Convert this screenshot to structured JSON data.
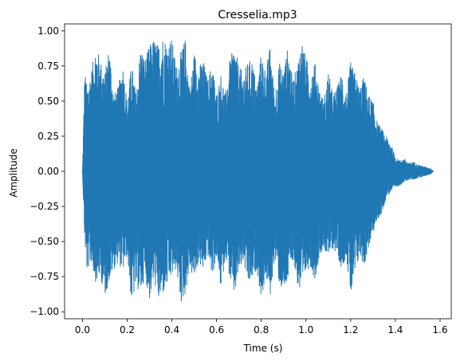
{
  "chart_data": {
    "type": "line",
    "title": "Cresselia.mp3",
    "xlabel": "Time (s)",
    "ylabel": "Amplitude",
    "xlim": [
      -0.08,
      1.65
    ],
    "ylim": [
      -1.05,
      1.05
    ],
    "x_ticks": [
      0.0,
      0.2,
      0.4,
      0.6,
      0.8,
      1.0,
      1.2,
      1.4,
      1.6
    ],
    "x_tick_labels": [
      "0.0",
      "0.2",
      "0.4",
      "0.6",
      "0.8",
      "1.0",
      "1.2",
      "1.4",
      "1.6"
    ],
    "y_ticks": [
      -1.0,
      -0.75,
      -0.5,
      -0.25,
      0.0,
      0.25,
      0.5,
      0.75,
      1.0
    ],
    "y_tick_labels": [
      "−1.00",
      "−0.75",
      "−0.50",
      "−0.25",
      "0.00",
      "0.25",
      "0.50",
      "0.75",
      "1.00"
    ],
    "grid": false,
    "series_color": "#1f77b4",
    "duration": 1.57,
    "envelope": {
      "description_units": "time in seconds, amplitude peaks",
      "t": [
        0.0,
        0.01,
        0.02,
        0.04,
        0.06,
        0.08,
        0.1,
        0.12,
        0.14,
        0.16,
        0.18,
        0.2,
        0.22,
        0.24,
        0.26,
        0.28,
        0.3,
        0.32,
        0.34,
        0.36,
        0.38,
        0.4,
        0.42,
        0.44,
        0.46,
        0.48,
        0.5,
        0.52,
        0.54,
        0.56,
        0.58,
        0.6,
        0.62,
        0.64,
        0.66,
        0.68,
        0.7,
        0.72,
        0.74,
        0.76,
        0.78,
        0.8,
        0.82,
        0.84,
        0.86,
        0.88,
        0.9,
        0.92,
        0.94,
        0.96,
        0.98,
        1.0,
        1.02,
        1.04,
        1.06,
        1.08,
        1.1,
        1.12,
        1.14,
        1.16,
        1.18,
        1.2,
        1.22,
        1.24,
        1.26,
        1.28,
        1.3,
        1.32,
        1.34,
        1.36,
        1.38,
        1.4,
        1.42,
        1.44,
        1.46,
        1.48,
        1.5,
        1.52,
        1.54,
        1.56,
        1.57
      ],
      "pos": [
        0.0,
        0.73,
        0.6,
        0.73,
        0.9,
        0.8,
        0.7,
        0.9,
        0.55,
        0.6,
        0.78,
        0.5,
        0.78,
        0.55,
        0.9,
        0.8,
        0.9,
        0.95,
        0.9,
        0.97,
        0.92,
        0.95,
        0.75,
        0.85,
        0.95,
        0.6,
        0.85,
        0.75,
        0.8,
        0.65,
        0.78,
        0.55,
        0.7,
        0.55,
        0.8,
        0.9,
        0.75,
        0.7,
        0.78,
        0.8,
        0.6,
        0.85,
        0.72,
        0.9,
        0.55,
        0.78,
        0.72,
        0.9,
        0.65,
        0.75,
        0.95,
        0.82,
        0.7,
        0.78,
        0.6,
        0.5,
        0.72,
        0.55,
        0.6,
        0.72,
        0.55,
        0.78,
        0.7,
        0.6,
        0.68,
        0.55,
        0.5,
        0.35,
        0.3,
        0.25,
        0.2,
        0.1,
        0.08,
        0.09,
        0.06,
        0.07,
        0.05,
        0.04,
        0.03,
        0.02,
        0.0
      ],
      "neg": [
        0.0,
        -0.5,
        -0.72,
        -0.65,
        -0.8,
        -0.75,
        -0.9,
        -0.78,
        -0.7,
        -0.65,
        -0.72,
        -0.6,
        -0.95,
        -0.82,
        -0.88,
        -0.75,
        -0.92,
        -0.78,
        -0.93,
        -0.88,
        -0.82,
        -0.75,
        -0.7,
        -0.95,
        -0.88,
        -0.7,
        -0.78,
        -0.65,
        -0.72,
        -0.6,
        -0.75,
        -0.62,
        -0.85,
        -0.6,
        -0.78,
        -0.9,
        -0.72,
        -0.65,
        -0.82,
        -0.78,
        -0.7,
        -0.92,
        -0.75,
        -0.9,
        -0.62,
        -0.8,
        -0.88,
        -0.78,
        -0.62,
        -0.8,
        -0.92,
        -0.72,
        -0.68,
        -0.78,
        -0.6,
        -0.55,
        -0.62,
        -0.55,
        -0.6,
        -0.7,
        -0.6,
        -0.9,
        -0.75,
        -0.6,
        -0.68,
        -0.55,
        -0.45,
        -0.35,
        -0.3,
        -0.18,
        -0.15,
        -0.12,
        -0.1,
        -0.08,
        -0.06,
        -0.06,
        -0.05,
        -0.04,
        -0.03,
        -0.02,
        0.0
      ]
    }
  }
}
